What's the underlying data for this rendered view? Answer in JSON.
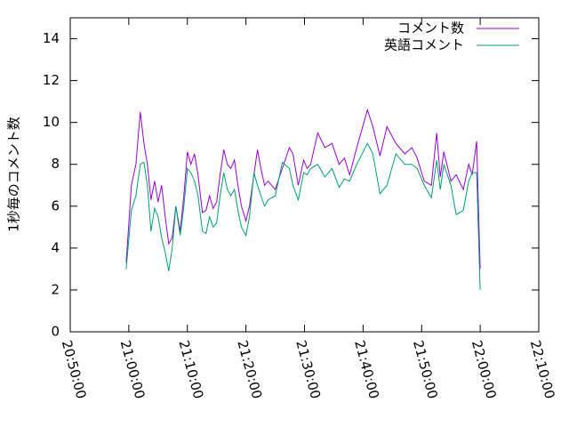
{
  "chart_data": {
    "type": "line",
    "ylabel": "1秒毎のコメント数",
    "x": [
      75573,
      75627,
      75673,
      75718,
      75755,
      75791,
      75827,
      75864,
      75900,
      75936,
      75973,
      76009,
      76045,
      76082,
      76127,
      76164,
      76200,
      76236,
      76273,
      76309,
      76354,
      76391,
      76427,
      76464,
      76500,
      76536,
      76573,
      76609,
      76645,
      76682,
      76718,
      76754,
      76800,
      76836,
      76882,
      76918,
      76954,
      76991,
      77027,
      77100,
      77173,
      77245,
      77282,
      77336,
      77391,
      77427,
      77463,
      77536,
      77609,
      77682,
      77754,
      77809,
      77863,
      77936,
      78045,
      78100,
      78173,
      78245,
      78336,
      78427,
      78500,
      78554,
      78627,
      78700,
      78754,
      78791,
      78827,
      78900,
      78954,
      79027,
      79082,
      79118,
      79163,
      79200
    ],
    "series": [
      {
        "name": "コメント数",
        "color": "#9400d3",
        "values": [
          3.3,
          7,
          8,
          10.5,
          9,
          8,
          6.3,
          7.2,
          6.2,
          7,
          5.5,
          4.2,
          4.5,
          6,
          4.8,
          6.5,
          8.6,
          8,
          8.5,
          7.5,
          5.7,
          5.8,
          6.5,
          5.9,
          6.2,
          7.5,
          8.7,
          8,
          7.8,
          8.2,
          7,
          6,
          5.3,
          6,
          7.5,
          8.7,
          7.8,
          7,
          7.2,
          6.8,
          7.8,
          8.8,
          8.5,
          7,
          8.2,
          7.8,
          8,
          9.5,
          8.8,
          9,
          8,
          8.3,
          7.5,
          8.8,
          10.6,
          9.8,
          8.4,
          9.8,
          9,
          8.5,
          8.8,
          8.3,
          7.2,
          7,
          9.5,
          7.4,
          8.6,
          7.2,
          7.5,
          6.8,
          8,
          7.5,
          9.1,
          3
        ]
      },
      {
        "name": "英語コメント",
        "color": "#009e73",
        "values": [
          3.0,
          5.8,
          6.5,
          8.0,
          8.1,
          7.0,
          4.8,
          5.9,
          5.5,
          4.5,
          3.8,
          2.9,
          4.0,
          6.0,
          4.6,
          6.0,
          7.8,
          7.6,
          7.2,
          6.5,
          4.8,
          4.7,
          5.5,
          5.0,
          5.2,
          6.5,
          7.6,
          6.8,
          6.5,
          6.8,
          5.8,
          5.0,
          4.6,
          5.5,
          7.6,
          7.0,
          6.5,
          6.0,
          6.3,
          6.5,
          8.1,
          7.8,
          7.0,
          6.3,
          7.6,
          7.5,
          7.8,
          8.0,
          7.4,
          7.8,
          6.9,
          7.3,
          7.2,
          8.0,
          9.0,
          8.5,
          6.6,
          7.0,
          8.5,
          8.0,
          8.0,
          7.8,
          7.0,
          6.4,
          8.2,
          6.8,
          8.0,
          7.0,
          5.6,
          5.8,
          7.2,
          7.6,
          7.6,
          2.0
        ]
      }
    ],
    "xlim": [
      75000,
      79800
    ],
    "xticks": [
      {
        "value": 75000,
        "label": "20:50:00"
      },
      {
        "value": 75600,
        "label": "21:00:00"
      },
      {
        "value": 76200,
        "label": "21:10:00"
      },
      {
        "value": 76800,
        "label": "21:20:00"
      },
      {
        "value": 77400,
        "label": "21:30:00"
      },
      {
        "value": 78000,
        "label": "21:40:00"
      },
      {
        "value": 78600,
        "label": "21:50:00"
      },
      {
        "value": 79200,
        "label": "22:00:00"
      },
      {
        "value": 79800,
        "label": "22:10:00"
      }
    ],
    "ylim": [
      0,
      15
    ],
    "yticks": [
      0,
      2,
      4,
      6,
      8,
      10,
      12,
      14
    ],
    "grid": false,
    "legend": "top-right"
  }
}
